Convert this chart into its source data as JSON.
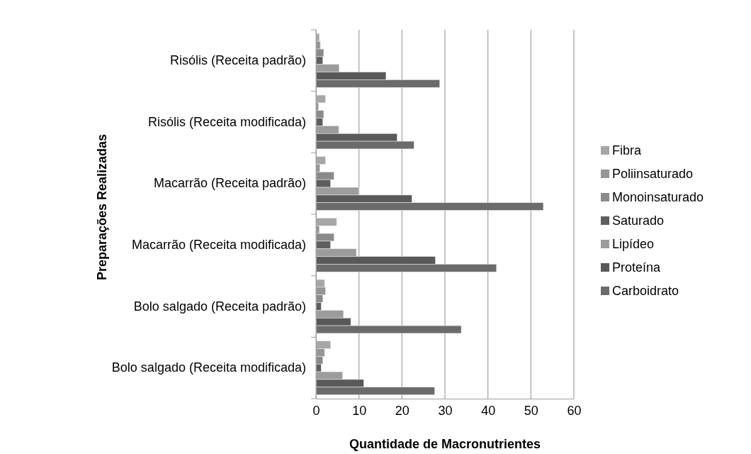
{
  "chart_data": {
    "type": "bar",
    "orientation": "horizontal",
    "xlabel": "Quantidade de Macronutrientes",
    "ylabel": "Preparações Realizadas",
    "categories": [
      "Risólis (Receita padrão)",
      "Risólis (Receita modificada)",
      "Macarrão (Receita padrão)",
      "Macarrão (Receita modificada)",
      "Bolo salgado (Receita padrão)",
      "Bolo salgado (Receita modificada)"
    ],
    "series": [
      {
        "name": "Fibra",
        "color": "#a6a6a6",
        "values": [
          0.8,
          2.2,
          2.2,
          4.8,
          2.0,
          3.4
        ]
      },
      {
        "name": "Poliinsaturado",
        "color": "#959595",
        "values": [
          1.0,
          0.6,
          0.9,
          0.8,
          2.2,
          2.0
        ]
      },
      {
        "name": "Monoinsaturado",
        "color": "#8a8a8a",
        "values": [
          1.8,
          1.8,
          4.2,
          4.2,
          1.6,
          1.6
        ]
      },
      {
        "name": "Saturado",
        "color": "#5e5e5e",
        "values": [
          1.6,
          1.6,
          3.4,
          3.4,
          1.2,
          1.2
        ]
      },
      {
        "name": "Lipídeo",
        "color": "#9c9c9c",
        "values": [
          5.4,
          5.3,
          10.0,
          9.4,
          6.4,
          6.2
        ]
      },
      {
        "name": "Proteína",
        "color": "#595959",
        "values": [
          16.3,
          18.9,
          22.3,
          27.8,
          8.1,
          11.1
        ]
      },
      {
        "name": "Carboidrato",
        "color": "#6b6b6b",
        "values": [
          28.8,
          22.8,
          52.9,
          42.0,
          33.8,
          27.6
        ]
      }
    ],
    "xlim": [
      0,
      60
    ],
    "xticks": [
      0,
      10,
      20,
      30,
      40,
      50,
      60
    ],
    "grid": "x",
    "legend": "right"
  }
}
